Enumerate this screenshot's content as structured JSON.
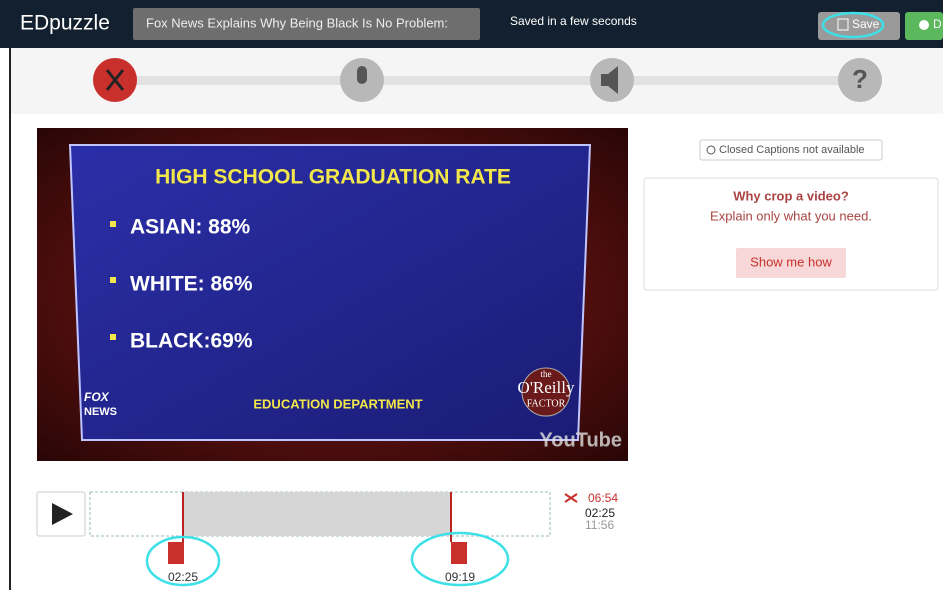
{
  "header": {
    "logo": "EDpuzzle",
    "video_title": "Fox News Explains Why Being Black Is No Problem:",
    "save_status": "Saved in a few seconds",
    "save_button": "Save",
    "done_button": "D"
  },
  "video": {
    "headline": "HIGH SCHOOL GRADUATION RATE",
    "items": [
      "ASIAN: 88%",
      "WHITE: 86%",
      "BLACK:69%"
    ],
    "footer": "EDUCATION DEPARTMENT",
    "network": [
      "FOX",
      "NEWS"
    ],
    "show": [
      "the",
      "O'Reilly",
      "FACTOR"
    ],
    "watermark": "YouTube"
  },
  "sidebar": {
    "captions": "Closed Captions not available",
    "card_title": "Why crop a video?",
    "card_text": "Explain only what you need.",
    "card_button": "Show me how"
  },
  "timeline": {
    "duration": "06:54",
    "current": "02:25",
    "total": "11:56",
    "handles": [
      "02:25",
      "09:19"
    ]
  }
}
